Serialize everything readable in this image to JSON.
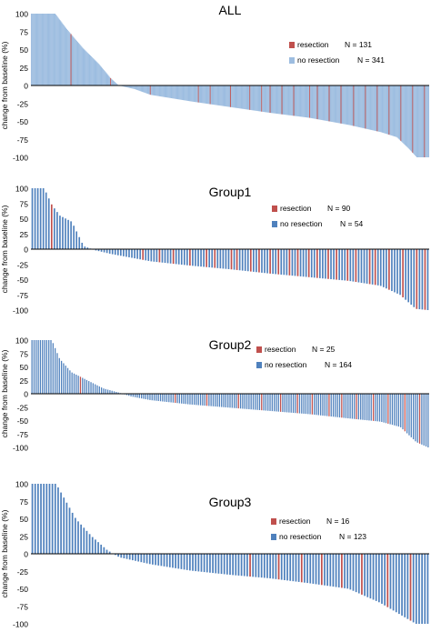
{
  "colors": {
    "resection": "#c0504d",
    "no_resection_all": "#9dbde0",
    "no_resection": "#4f81bd",
    "zero_line": "#000000",
    "axis_text": "#000000"
  },
  "chart_data": [
    {
      "type": "bar",
      "title": "ALL",
      "ylabel": "change from baseline (%)",
      "xlabel": "",
      "ylim": [
        -100,
        100
      ],
      "yticks": [
        "100",
        "75",
        "50",
        "25",
        "0",
        "-25",
        "-50",
        "-75",
        "-100"
      ],
      "legend_placement": "top-right",
      "series": [
        {
          "name": "resection",
          "legend_text": "resection",
          "n_text": "N = 131",
          "color_key": "resection"
        },
        {
          "name": "no resection",
          "legend_text": "no resection",
          "n_text": "N = 341",
          "color_key": "no_resection_all"
        }
      ],
      "n_bars": 472,
      "profile": [
        [
          0,
          100
        ],
        [
          0.06,
          100
        ],
        [
          0.09,
          78
        ],
        [
          0.13,
          52
        ],
        [
          0.17,
          30
        ],
        [
          0.2,
          10
        ],
        [
          0.22,
          0
        ],
        [
          0.26,
          -5
        ],
        [
          0.3,
          -13
        ],
        [
          0.4,
          -22
        ],
        [
          0.5,
          -30
        ],
        [
          0.6,
          -38
        ],
        [
          0.7,
          -45
        ],
        [
          0.8,
          -55
        ],
        [
          0.88,
          -65
        ],
        [
          0.92,
          -72
        ],
        [
          0.95,
          -88
        ],
        [
          0.97,
          -100
        ],
        [
          1,
          -100
        ]
      ],
      "resection_positions": [
        0.1,
        0.2,
        0.3,
        0.42,
        0.45,
        0.5,
        0.55,
        0.58,
        0.6,
        0.63,
        0.66,
        0.7,
        0.72,
        0.75,
        0.78,
        0.81,
        0.84,
        0.87,
        0.9,
        0.93,
        0.96,
        0.99
      ]
    },
    {
      "type": "bar",
      "title": "Group1",
      "ylabel": "change from baseline (%)",
      "xlabel": "",
      "ylim": [
        -100,
        100
      ],
      "yticks": [
        "100",
        "75",
        "50",
        "25",
        "0",
        "-25",
        "-50",
        "-75",
        "-100"
      ],
      "legend_placement": "top-right",
      "series": [
        {
          "name": "resection",
          "legend_text": "resection",
          "n_text": "N = 90",
          "color_key": "resection"
        },
        {
          "name": "no resection",
          "legend_text": "no resection",
          "n_text": "N = 54",
          "color_key": "no_resection"
        }
      ],
      "n_bars": 144,
      "profile": [
        [
          0,
          100
        ],
        [
          0.03,
          100
        ],
        [
          0.05,
          72
        ],
        [
          0.07,
          55
        ],
        [
          0.1,
          45
        ],
        [
          0.13,
          5
        ],
        [
          0.16,
          -2
        ],
        [
          0.2,
          -8
        ],
        [
          0.3,
          -20
        ],
        [
          0.4,
          -27
        ],
        [
          0.5,
          -33
        ],
        [
          0.6,
          -40
        ],
        [
          0.7,
          -46
        ],
        [
          0.8,
          -52
        ],
        [
          0.88,
          -60
        ],
        [
          0.93,
          -75
        ],
        [
          0.97,
          -98
        ],
        [
          1,
          -100
        ]
      ],
      "resection_positions": [
        0.05,
        0.28,
        0.32,
        0.36,
        0.4,
        0.44,
        0.46,
        0.5,
        0.52,
        0.55,
        0.57,
        0.6,
        0.62,
        0.65,
        0.67,
        0.7,
        0.72,
        0.75,
        0.77,
        0.8,
        0.82,
        0.85,
        0.87,
        0.9,
        0.94,
        0.97,
        0.99
      ]
    },
    {
      "type": "bar",
      "title": "Group2",
      "ylabel": "change from baseline (%)",
      "xlabel": "",
      "ylim": [
        -100,
        100
      ],
      "yticks": [
        "100",
        "75",
        "50",
        "25",
        "0",
        "-25",
        "-50",
        "-75",
        "-100"
      ],
      "legend_placement": "top-right",
      "series": [
        {
          "name": "resection",
          "legend_text": "resection",
          "n_text": "N = 25",
          "color_key": "resection"
        },
        {
          "name": "no resection",
          "legend_text": "no resection",
          "n_text": "N = 164",
          "color_key": "no_resection"
        }
      ],
      "n_bars": 189,
      "profile": [
        [
          0,
          100
        ],
        [
          0.05,
          100
        ],
        [
          0.07,
          65
        ],
        [
          0.1,
          40
        ],
        [
          0.14,
          25
        ],
        [
          0.18,
          10
        ],
        [
          0.22,
          2
        ],
        [
          0.25,
          -5
        ],
        [
          0.3,
          -12
        ],
        [
          0.4,
          -20
        ],
        [
          0.5,
          -26
        ],
        [
          0.6,
          -32
        ],
        [
          0.7,
          -38
        ],
        [
          0.8,
          -46
        ],
        [
          0.88,
          -52
        ],
        [
          0.93,
          -62
        ],
        [
          0.97,
          -90
        ],
        [
          1,
          -100
        ]
      ],
      "resection_positions": [
        0.12,
        0.36,
        0.44,
        0.52,
        0.58,
        0.63,
        0.67,
        0.71,
        0.75,
        0.78,
        0.82,
        0.86,
        0.9,
        0.94,
        0.98
      ]
    },
    {
      "type": "bar",
      "title": "Group3",
      "ylabel": "change from baseline (%)",
      "xlabel": "",
      "ylim": [
        -100,
        100
      ],
      "yticks": [
        "100",
        "75",
        "50",
        "25",
        "0",
        "-25",
        "-50",
        "-75",
        "-100"
      ],
      "legend_placement": "top-right",
      "series": [
        {
          "name": "resection",
          "legend_text": "resection",
          "n_text": "N = 16",
          "color_key": "resection"
        },
        {
          "name": "no resection",
          "legend_text": "no resection",
          "n_text": "N = 123",
          "color_key": "no_resection"
        }
      ],
      "n_bars": 139,
      "profile": [
        [
          0,
          100
        ],
        [
          0.06,
          100
        ],
        [
          0.08,
          80
        ],
        [
          0.11,
          50
        ],
        [
          0.15,
          25
        ],
        [
          0.19,
          5
        ],
        [
          0.22,
          -5
        ],
        [
          0.3,
          -15
        ],
        [
          0.4,
          -24
        ],
        [
          0.5,
          -30
        ],
        [
          0.6,
          -35
        ],
        [
          0.7,
          -42
        ],
        [
          0.8,
          -50
        ],
        [
          0.88,
          -70
        ],
        [
          0.94,
          -90
        ],
        [
          0.97,
          -100
        ],
        [
          1,
          -100
        ]
      ],
      "resection_positions": [
        0.55,
        0.62,
        0.68,
        0.73,
        0.78,
        0.83,
        0.9,
        0.96
      ]
    }
  ]
}
